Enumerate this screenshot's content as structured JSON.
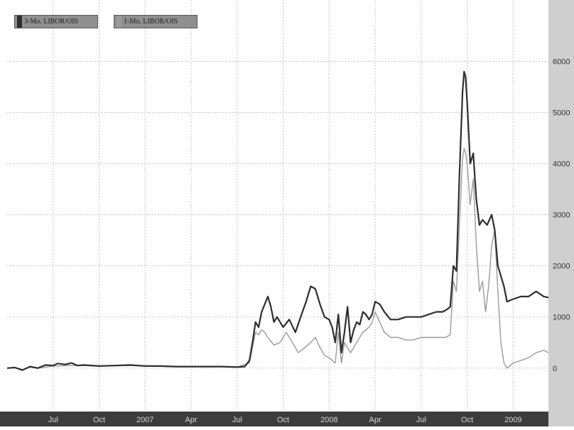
{
  "legend": [
    {
      "label": "3-Mo. LIBOR/OIS",
      "color": "#2e2e2e"
    },
    {
      "label": "1-Mo. LIBOR/OIS",
      "color": "#9a9a9a"
    }
  ],
  "chart_data": {
    "type": "line",
    "title": "",
    "xlabel": "",
    "ylabel": "",
    "x_tick_labels": [
      "Jul",
      "Oct",
      "2007",
      "Apr",
      "Jul",
      "Oct",
      "2008",
      "Apr",
      "Jul",
      "Oct",
      "2009"
    ],
    "y_tick_labels": [
      "0",
      "1000",
      "2000",
      "3000",
      "4000",
      "5000",
      "6000"
    ],
    "ylim": [
      -850,
      7200
    ],
    "grid": true,
    "legend_position": "top-left",
    "x_unit": "months since Apr 2006",
    "x_ticks": [
      3,
      6,
      9,
      12,
      15,
      18,
      21,
      24,
      27,
      30,
      33
    ],
    "xlim": [
      0,
      35.3
    ],
    "series": [
      {
        "name": "3-Mo. LIBOR/OIS",
        "color": "#2e2e2e",
        "points": [
          [
            0,
            0
          ],
          [
            0.5,
            10
          ],
          [
            1,
            -40
          ],
          [
            1.5,
            30
          ],
          [
            2,
            0
          ],
          [
            2.5,
            60
          ],
          [
            3,
            50
          ],
          [
            3.3,
            90
          ],
          [
            3.8,
            70
          ],
          [
            4.2,
            100
          ],
          [
            4.6,
            50
          ],
          [
            5,
            60
          ],
          [
            6,
            40
          ],
          [
            7,
            50
          ],
          [
            8,
            60
          ],
          [
            9,
            40
          ],
          [
            10,
            40
          ],
          [
            11,
            30
          ],
          [
            12,
            30
          ],
          [
            13,
            30
          ],
          [
            14,
            30
          ],
          [
            15,
            20
          ],
          [
            15.5,
            30
          ],
          [
            15.8,
            150
          ],
          [
            16,
            500
          ],
          [
            16.2,
            900
          ],
          [
            16.4,
            800
          ],
          [
            16.6,
            1100
          ],
          [
            16.8,
            1250
          ],
          [
            17,
            1400
          ],
          [
            17.2,
            1200
          ],
          [
            17.4,
            900
          ],
          [
            17.6,
            1000
          ],
          [
            18,
            800
          ],
          [
            18.4,
            950
          ],
          [
            18.8,
            700
          ],
          [
            19.2,
            1050
          ],
          [
            19.5,
            1300
          ],
          [
            19.8,
            1600
          ],
          [
            20.1,
            1550
          ],
          [
            20.4,
            1250
          ],
          [
            20.7,
            1000
          ],
          [
            21,
            950
          ],
          [
            21.2,
            800
          ],
          [
            21.4,
            500
          ],
          [
            21.6,
            1050
          ],
          [
            21.8,
            300
          ],
          [
            22,
            700
          ],
          [
            22.2,
            1200
          ],
          [
            22.4,
            500
          ],
          [
            22.6,
            750
          ],
          [
            22.8,
            900
          ],
          [
            23,
            850
          ],
          [
            23.2,
            1100
          ],
          [
            23.4,
            1050
          ],
          [
            23.6,
            950
          ],
          [
            23.8,
            1050
          ],
          [
            24,
            1300
          ],
          [
            24.3,
            1250
          ],
          [
            24.6,
            1100
          ],
          [
            25,
            950
          ],
          [
            25.5,
            950
          ],
          [
            26,
            1000
          ],
          [
            26.5,
            1000
          ],
          [
            27,
            1000
          ],
          [
            27.5,
            1050
          ],
          [
            28,
            1100
          ],
          [
            28.4,
            1100
          ],
          [
            28.7,
            1150
          ],
          [
            28.9,
            1200
          ],
          [
            29.1,
            2000
          ],
          [
            29.3,
            1900
          ],
          [
            29.5,
            3800
          ],
          [
            29.7,
            5400
          ],
          [
            29.8,
            5800
          ],
          [
            29.9,
            5700
          ],
          [
            30.0,
            5200
          ],
          [
            30.2,
            4000
          ],
          [
            30.4,
            4200
          ],
          [
            30.6,
            3300
          ],
          [
            30.8,
            2800
          ],
          [
            31.0,
            2900
          ],
          [
            31.3,
            2800
          ],
          [
            31.6,
            3000
          ],
          [
            31.8,
            2700
          ],
          [
            32.0,
            2000
          ],
          [
            32.2,
            1800
          ],
          [
            32.4,
            1600
          ],
          [
            32.6,
            1300
          ],
          [
            33,
            1350
          ],
          [
            33.5,
            1400
          ],
          [
            34,
            1400
          ],
          [
            34.5,
            1500
          ],
          [
            35,
            1400
          ],
          [
            35.3,
            1380
          ]
        ]
      },
      {
        "name": "1-Mo. LIBOR/OIS",
        "color": "#9a9a9a",
        "points": [
          [
            0,
            0
          ],
          [
            0.5,
            10
          ],
          [
            1,
            -30
          ],
          [
            1.5,
            20
          ],
          [
            2,
            0
          ],
          [
            3,
            40
          ],
          [
            4,
            50
          ],
          [
            5,
            50
          ],
          [
            6,
            40
          ],
          [
            8,
            50
          ],
          [
            10,
            40
          ],
          [
            12,
            30
          ],
          [
            14,
            30
          ],
          [
            15,
            20
          ],
          [
            15.8,
            100
          ],
          [
            16,
            400
          ],
          [
            16.2,
            700
          ],
          [
            16.4,
            650
          ],
          [
            16.6,
            750
          ],
          [
            16.8,
            700
          ],
          [
            17,
            600
          ],
          [
            17.4,
            450
          ],
          [
            17.8,
            500
          ],
          [
            18.2,
            700
          ],
          [
            18.6,
            500
          ],
          [
            19,
            300
          ],
          [
            19.4,
            400
          ],
          [
            19.8,
            500
          ],
          [
            20.1,
            600
          ],
          [
            20.4,
            400
          ],
          [
            20.7,
            250
          ],
          [
            21,
            200
          ],
          [
            21.4,
            100
          ],
          [
            21.6,
            700
          ],
          [
            21.8,
            100
          ],
          [
            22,
            500
          ],
          [
            22.4,
            300
          ],
          [
            22.8,
            500
          ],
          [
            23.2,
            700
          ],
          [
            23.6,
            800
          ],
          [
            23.8,
            900
          ],
          [
            24,
            1100
          ],
          [
            24.3,
            900
          ],
          [
            24.6,
            700
          ],
          [
            25,
            600
          ],
          [
            25.5,
            600
          ],
          [
            26,
            550
          ],
          [
            26.5,
            550
          ],
          [
            27,
            600
          ],
          [
            27.5,
            600
          ],
          [
            28,
            600
          ],
          [
            28.6,
            600
          ],
          [
            28.9,
            650
          ],
          [
            29.1,
            1700
          ],
          [
            29.3,
            1500
          ],
          [
            29.5,
            2800
          ],
          [
            29.7,
            4100
          ],
          [
            29.8,
            4300
          ],
          [
            29.9,
            4200
          ],
          [
            30.0,
            4000
          ],
          [
            30.2,
            3200
          ],
          [
            30.4,
            3700
          ],
          [
            30.6,
            2400
          ],
          [
            30.8,
            1500
          ],
          [
            31.0,
            1700
          ],
          [
            31.2,
            1100
          ],
          [
            31.4,
            1600
          ],
          [
            31.6,
            2400
          ],
          [
            31.8,
            2700
          ],
          [
            32.0,
            1500
          ],
          [
            32.2,
            500
          ],
          [
            32.4,
            100
          ],
          [
            32.6,
            0
          ],
          [
            33,
            100
          ],
          [
            33.5,
            150
          ],
          [
            34,
            200
          ],
          [
            34.5,
            300
          ],
          [
            35,
            350
          ],
          [
            35.3,
            300
          ]
        ]
      }
    ]
  }
}
